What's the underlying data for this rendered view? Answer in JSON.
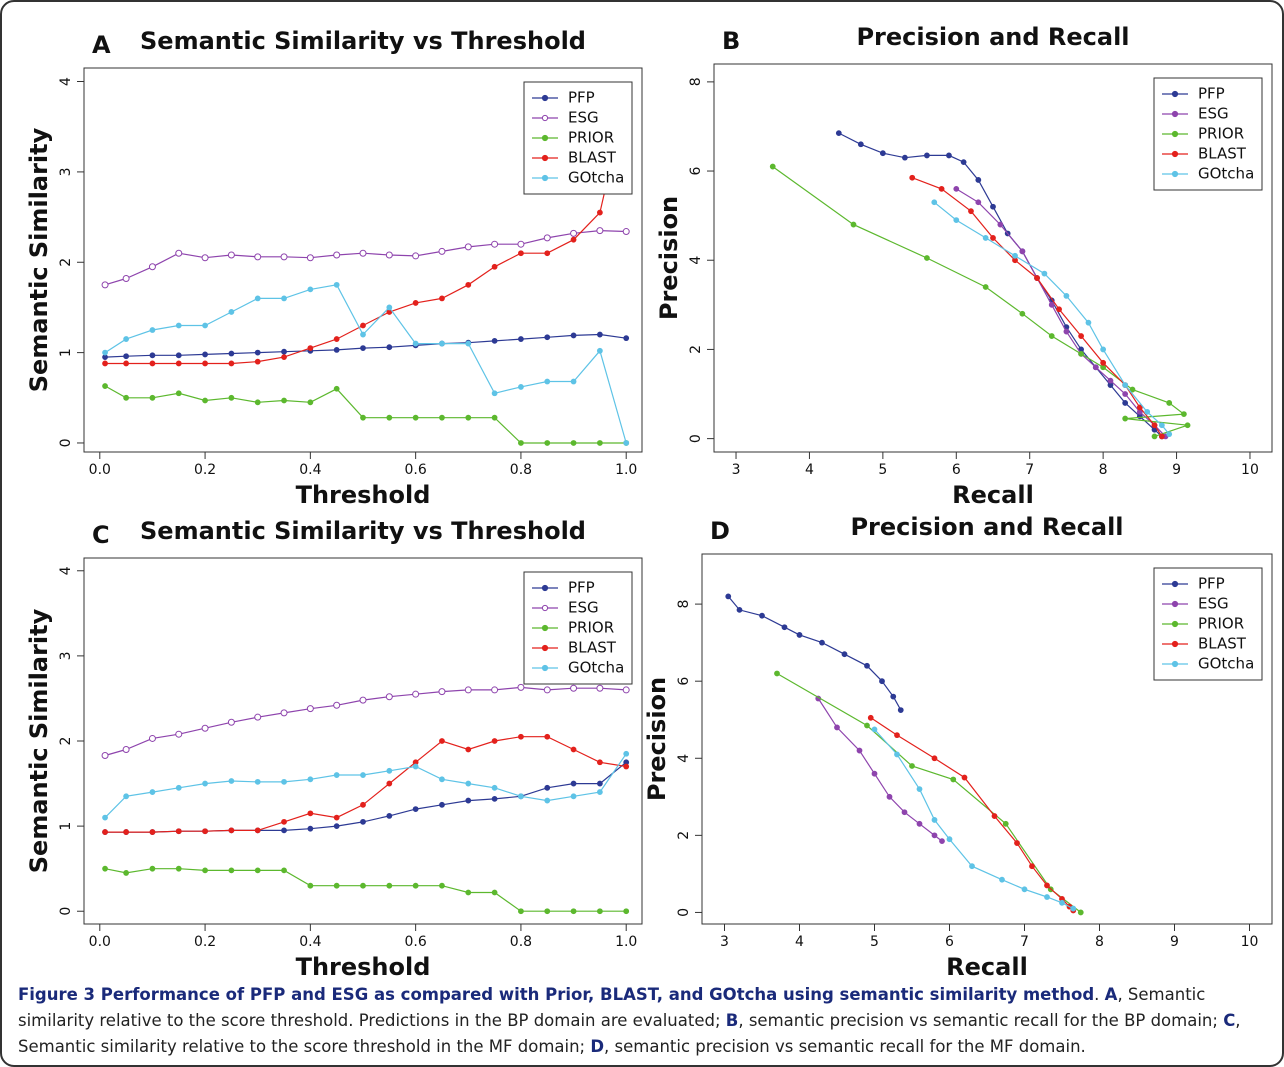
{
  "chart_data": [
    {
      "type": "line",
      "panel": "A",
      "title": "Semantic Similarity vs Threshold",
      "xlabel": "Threshold",
      "ylabel": "Semantic Similarity",
      "xlim": [
        -0.03,
        1.03
      ],
      "ylim": [
        -0.1,
        4.15
      ],
      "xticks": [
        {
          "value": 0,
          "label": "0.0"
        },
        0.2,
        0.4,
        0.6,
        0.8,
        {
          "value": 1,
          "label": "1.0"
        }
      ],
      "yticks": [
        0,
        1,
        2,
        3,
        4
      ],
      "x": [
        0.01,
        0.05,
        0.1,
        0.15,
        0.2,
        0.25,
        0.3,
        0.35,
        0.4,
        0.45,
        0.5,
        0.55,
        0.6,
        0.65,
        0.7,
        0.75,
        0.8,
        0.85,
        0.9,
        0.95,
        1.0
      ],
      "series": [
        {
          "name": "PFP",
          "color": "#2d3a94",
          "values": [
            0.95,
            0.96,
            0.97,
            0.97,
            0.98,
            0.99,
            1.0,
            1.01,
            1.02,
            1.03,
            1.05,
            1.06,
            1.08,
            1.1,
            1.11,
            1.13,
            1.15,
            1.17,
            1.19,
            1.2,
            1.16
          ]
        },
        {
          "name": "ESG",
          "color": "#8e44ad",
          "hollow": true,
          "values": [
            1.75,
            1.82,
            1.95,
            2.1,
            2.05,
            2.08,
            2.06,
            2.06,
            2.05,
            2.08,
            2.1,
            2.08,
            2.07,
            2.12,
            2.17,
            2.2,
            2.2,
            2.27,
            2.32,
            2.35,
            2.34
          ]
        },
        {
          "name": "PRIOR",
          "color": "#5cb82e",
          "values": [
            0.63,
            0.5,
            0.5,
            0.55,
            0.47,
            0.5,
            0.45,
            0.47,
            0.45,
            0.6,
            0.28,
            0.28,
            0.28,
            0.28,
            0.28,
            0.28,
            0,
            0,
            0,
            0,
            0
          ]
        },
        {
          "name": "BLAST",
          "color": "#e3211c",
          "values": [
            0.88,
            0.88,
            0.88,
            0.88,
            0.88,
            0.88,
            0.9,
            0.95,
            1.05,
            1.15,
            1.3,
            1.45,
            1.55,
            1.6,
            1.75,
            1.95,
            2.1,
            2.1,
            2.25,
            2.55,
            3.82
          ]
        },
        {
          "name": "GOtcha",
          "color": "#5ec3e6",
          "values": [
            1.0,
            1.15,
            1.25,
            1.3,
            1.3,
            1.45,
            1.6,
            1.6,
            1.7,
            1.75,
            1.2,
            1.5,
            1.1,
            1.1,
            1.1,
            0.55,
            0.62,
            0.68,
            0.68,
            1.02,
            0
          ]
        }
      ]
    },
    {
      "type": "line",
      "panel": "B",
      "title": "Precision and Recall",
      "xlabel": "Recall",
      "ylabel": "Precision",
      "xlim": [
        2.7,
        10.3
      ],
      "ylim": [
        -0.3,
        8.4
      ],
      "xticks": [
        3,
        4,
        5,
        6,
        7,
        8,
        9,
        10
      ],
      "yticks": [
        0,
        2,
        4,
        6,
        8
      ],
      "series": [
        {
          "name": "PFP",
          "color": "#2d3a94",
          "x": [
            4.4,
            4.7,
            5.0,
            5.3,
            5.6,
            5.9,
            6.1,
            6.3,
            6.5,
            6.7,
            6.9,
            7.1,
            7.3,
            7.5,
            7.7,
            7.9,
            8.1,
            8.3,
            8.5,
            8.7,
            8.8
          ],
          "values": [
            6.85,
            6.6,
            6.4,
            6.3,
            6.35,
            6.35,
            6.2,
            5.8,
            5.2,
            4.6,
            4.2,
            3.6,
            3.1,
            2.5,
            2.0,
            1.6,
            1.2,
            0.8,
            0.5,
            0.2,
            0.05
          ]
        },
        {
          "name": "ESG",
          "color": "#8e44ad",
          "x": [
            6.0,
            6.3,
            6.6,
            6.9,
            7.1,
            7.3,
            7.5,
            7.7,
            7.9,
            8.1,
            8.3,
            8.5,
            8.7,
            8.85
          ],
          "values": [
            5.6,
            5.3,
            4.8,
            4.2,
            3.6,
            3.0,
            2.4,
            1.9,
            1.6,
            1.3,
            1.0,
            0.6,
            0.3,
            0.05
          ]
        },
        {
          "name": "PRIOR",
          "color": "#5cb82e",
          "x": [
            3.5,
            4.6,
            5.6,
            6.4,
            6.9,
            7.3,
            7.7,
            8.0,
            8.4,
            8.9,
            9.1,
            8.3,
            9.15,
            8.7
          ],
          "values": [
            6.1,
            4.8,
            4.05,
            3.4,
            2.8,
            2.3,
            1.9,
            1.6,
            1.1,
            0.8,
            0.55,
            0.45,
            0.3,
            0.05
          ]
        },
        {
          "name": "BLAST",
          "color": "#e3211c",
          "x": [
            5.4,
            5.8,
            6.2,
            6.5,
            6.8,
            7.1,
            7.4,
            7.7,
            8.0,
            8.3,
            8.5,
            8.7,
            8.8
          ],
          "values": [
            5.85,
            5.6,
            5.1,
            4.5,
            4.0,
            3.6,
            2.9,
            2.3,
            1.7,
            1.2,
            0.7,
            0.3,
            0.05
          ]
        },
        {
          "name": "GOtcha",
          "color": "#5ec3e6",
          "x": [
            5.7,
            6.0,
            6.4,
            6.8,
            7.2,
            7.5,
            7.8,
            8.0,
            8.3,
            8.6,
            8.8,
            8.9
          ],
          "values": [
            5.3,
            4.9,
            4.5,
            4.1,
            3.7,
            3.2,
            2.6,
            2.0,
            1.2,
            0.6,
            0.3,
            0.1
          ]
        }
      ]
    },
    {
      "type": "line",
      "panel": "C",
      "title": "Semantic Similarity vs Threshold",
      "xlabel": "Threshold",
      "ylabel": "Semantic Similarity",
      "xlim": [
        -0.03,
        1.03
      ],
      "ylim": [
        -0.15,
        4.15
      ],
      "xticks": [
        {
          "value": 0,
          "label": "0.0"
        },
        0.2,
        0.4,
        0.6,
        0.8,
        {
          "value": 1,
          "label": "1.0"
        }
      ],
      "yticks": [
        0,
        1,
        2,
        3,
        4
      ],
      "x": [
        0.01,
        0.05,
        0.1,
        0.15,
        0.2,
        0.25,
        0.3,
        0.35,
        0.4,
        0.45,
        0.5,
        0.55,
        0.6,
        0.65,
        0.7,
        0.75,
        0.8,
        0.85,
        0.9,
        0.95,
        1.0
      ],
      "series": [
        {
          "name": "PFP",
          "color": "#2d3a94",
          "values": [
            0.93,
            0.93,
            0.93,
            0.94,
            0.94,
            0.95,
            0.95,
            0.95,
            0.97,
            1.0,
            1.05,
            1.12,
            1.2,
            1.25,
            1.3,
            1.32,
            1.35,
            1.45,
            1.5,
            1.5,
            1.75
          ]
        },
        {
          "name": "ESG",
          "color": "#8e44ad",
          "hollow": true,
          "values": [
            1.83,
            1.9,
            2.03,
            2.08,
            2.15,
            2.22,
            2.28,
            2.33,
            2.38,
            2.42,
            2.48,
            2.52,
            2.55,
            2.58,
            2.6,
            2.6,
            2.63,
            2.6,
            2.62,
            2.62,
            2.6
          ]
        },
        {
          "name": "PRIOR",
          "color": "#5cb82e",
          "values": [
            0.5,
            0.45,
            0.5,
            0.5,
            0.48,
            0.48,
            0.48,
            0.48,
            0.3,
            0.3,
            0.3,
            0.3,
            0.3,
            0.3,
            0.22,
            0.22,
            0,
            0,
            0,
            0,
            0
          ]
        },
        {
          "name": "BLAST",
          "color": "#e3211c",
          "values": [
            0.93,
            0.93,
            0.93,
            0.94,
            0.94,
            0.95,
            0.95,
            1.05,
            1.15,
            1.1,
            1.25,
            1.5,
            1.75,
            2.0,
            1.9,
            2.0,
            2.05,
            2.05,
            1.9,
            1.75,
            1.7
          ]
        },
        {
          "name": "GOtcha",
          "color": "#5ec3e6",
          "values": [
            1.1,
            1.35,
            1.4,
            1.45,
            1.5,
            1.53,
            1.52,
            1.52,
            1.55,
            1.6,
            1.6,
            1.65,
            1.7,
            1.55,
            1.5,
            1.45,
            1.35,
            1.3,
            1.35,
            1.4,
            1.85
          ]
        }
      ]
    },
    {
      "type": "line",
      "panel": "D",
      "title": "Precision and Recall",
      "xlabel": "Recall",
      "ylabel": "Precision",
      "xlim": [
        2.7,
        10.3
      ],
      "ylim": [
        -0.3,
        9.3
      ],
      "xticks": [
        3,
        4,
        5,
        6,
        7,
        8,
        9,
        10
      ],
      "yticks": [
        0,
        2,
        4,
        6,
        8
      ],
      "series": [
        {
          "name": "PFP",
          "color": "#2d3a94",
          "x": [
            3.05,
            3.2,
            3.5,
            3.8,
            4.0,
            4.3,
            4.6,
            4.9,
            5.1,
            5.25,
            5.35
          ],
          "values": [
            8.2,
            7.85,
            7.7,
            7.4,
            7.2,
            7.0,
            6.7,
            6.4,
            6.0,
            5.6,
            5.25
          ]
        },
        {
          "name": "ESG",
          "color": "#8e44ad",
          "x": [
            4.25,
            4.5,
            4.8,
            5.0,
            5.2,
            5.4,
            5.6,
            5.8,
            5.9
          ],
          "values": [
            5.55,
            4.8,
            4.2,
            3.6,
            3.0,
            2.6,
            2.3,
            2.0,
            1.85
          ]
        },
        {
          "name": "PRIOR",
          "color": "#5cb82e",
          "x": [
            3.7,
            4.9,
            5.5,
            6.05,
            6.75,
            7.35,
            7.75
          ],
          "values": [
            6.2,
            4.85,
            3.8,
            3.45,
            2.3,
            0.6,
            0
          ]
        },
        {
          "name": "BLAST",
          "color": "#e3211c",
          "x": [
            4.95,
            5.3,
            5.8,
            6.2,
            6.6,
            6.9,
            7.1,
            7.3,
            7.5,
            7.6,
            7.65
          ],
          "values": [
            5.05,
            4.6,
            4.0,
            3.5,
            2.5,
            1.8,
            1.2,
            0.7,
            0.35,
            0.15,
            0.05
          ]
        },
        {
          "name": "GOtcha",
          "color": "#5ec3e6",
          "x": [
            5.0,
            5.3,
            5.6,
            5.8,
            6.0,
            6.3,
            6.7,
            7.0,
            7.3,
            7.5,
            7.65
          ],
          "values": [
            4.75,
            4.1,
            3.2,
            2.4,
            1.9,
            1.2,
            0.85,
            0.6,
            0.4,
            0.25,
            0.1
          ]
        }
      ]
    }
  ],
  "caption": [
    {
      "text": "Figure 3 Performance of PFP and ESG as compared with Prior, BLAST, and GOtcha using semantic similarity method",
      "bold": true
    },
    {
      "text": ". ",
      "bold": false
    },
    {
      "text": "A",
      "bold": true
    },
    {
      "text": ", Semantic similarity relative to the score threshold. Predictions in the BP domain are evaluated; ",
      "bold": false
    },
    {
      "text": "B",
      "bold": true
    },
    {
      "text": ", semantic precision vs semantic recall for the BP domain; ",
      "bold": false
    },
    {
      "text": "C",
      "bold": true
    },
    {
      "text": ", Semantic similarity relative to the score threshold in the MF domain; ",
      "bold": false
    },
    {
      "text": "D",
      "bold": true
    },
    {
      "text": ", semantic precision vs semantic recall for the MF domain.",
      "bold": false
    }
  ]
}
